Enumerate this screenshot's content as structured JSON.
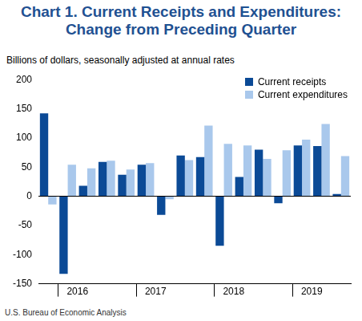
{
  "chart_data": {
    "type": "bar",
    "title": [
      "Chart 1. Current Receipts and Expenditures:",
      "Change from Preceding Quarter"
    ],
    "subtitle": "Billions of dollars, seasonally adjusted at annual rates",
    "source": "U.S. Bureau of Economic Analysis",
    "categories": [
      null,
      "2016",
      null,
      null,
      null,
      "2017",
      null,
      null,
      null,
      "2018",
      null,
      null,
      null,
      "2019",
      null,
      null
    ],
    "series": [
      {
        "name": "Current receipts",
        "color": "#0b4a96",
        "values": [
          142,
          -133,
          18,
          59,
          37,
          54,
          -32,
          70,
          67,
          -85,
          33,
          80,
          -12,
          87,
          86,
          4
        ]
      },
      {
        "name": "Current expenditures",
        "color": "#a9c8ec",
        "values": [
          -14,
          54,
          48,
          61,
          46,
          57,
          -5,
          62,
          121,
          90,
          87,
          64,
          79,
          97,
          124,
          69
        ]
      }
    ],
    "ylim": [
      -150,
      200
    ],
    "yticks": [
      -150,
      -100,
      -50,
      0,
      50,
      100,
      150,
      200
    ],
    "grid": false,
    "legend": "top-right"
  }
}
